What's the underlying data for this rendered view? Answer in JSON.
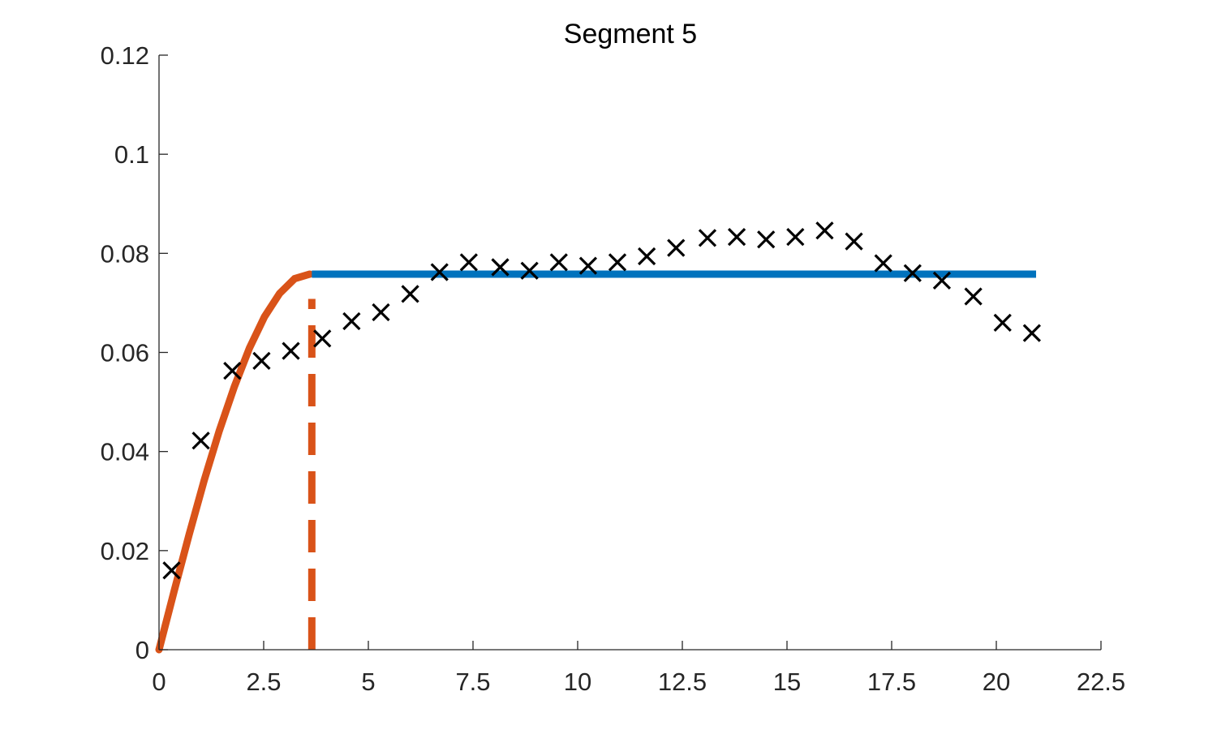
{
  "chart_data": {
    "type": "scatter",
    "title": "Segment 5",
    "xlabel": "",
    "ylabel": "",
    "xlim": [
      0,
      22.5
    ],
    "ylim": [
      0,
      0.12
    ],
    "xticks": [
      0,
      2.5,
      5,
      7.5,
      10,
      12.5,
      15,
      17.5,
      20,
      22.5
    ],
    "xtick_labels": [
      "0",
      "2.5",
      "5",
      "7.5",
      "10",
      "12.5",
      "15",
      "17.5",
      "20",
      "22.5"
    ],
    "yticks": [
      0,
      0.02,
      0.04,
      0.06,
      0.08,
      0.1,
      0.12
    ],
    "ytick_labels": [
      "0",
      "0.02",
      "0.04",
      "0.06",
      "0.08",
      "0.1",
      "0.12"
    ],
    "grid": false,
    "legend": "none",
    "series": [
      {
        "kind": "scatter",
        "marker": "x",
        "color": "#000000",
        "x": [
          0.3,
          1.0,
          1.75,
          2.45,
          3.15,
          3.9,
          4.6,
          5.3,
          6.0,
          6.7,
          7.4,
          8.15,
          8.85,
          9.55,
          10.25,
          10.95,
          11.65,
          12.35,
          13.1,
          13.8,
          14.5,
          15.2,
          15.9,
          16.6,
          17.3,
          18.0,
          18.7,
          19.45,
          20.15,
          20.85
        ],
        "y": [
          0.016,
          0.0422,
          0.0563,
          0.0583,
          0.0603,
          0.0628,
          0.0663,
          0.0681,
          0.0718,
          0.0762,
          0.0782,
          0.0772,
          0.0765,
          0.0782,
          0.0775,
          0.0782,
          0.0794,
          0.0811,
          0.0831,
          0.0833,
          0.0828,
          0.0833,
          0.0846,
          0.0824,
          0.078,
          0.076,
          0.0745,
          0.0713,
          0.066,
          0.0639
        ]
      },
      {
        "kind": "curve",
        "color": "#D95319",
        "style": "solid",
        "x": [
          0.0,
          0.36,
          0.72,
          1.08,
          1.44,
          1.8,
          2.16,
          2.52,
          2.88,
          3.24,
          3.6
        ],
        "y": [
          0.0,
          0.0118,
          0.0233,
          0.0342,
          0.0442,
          0.0531,
          0.0609,
          0.0672,
          0.0719,
          0.0749,
          0.0758
        ]
      },
      {
        "kind": "vertical-line",
        "color": "#D95319",
        "style": "dashed",
        "x": 3.65,
        "y": [
          0.0,
          0.0708
        ]
      },
      {
        "kind": "horizontal-line",
        "color": "#0072BD",
        "style": "solid",
        "x": [
          3.65,
          20.95
        ],
        "y": 0.0758
      }
    ]
  }
}
